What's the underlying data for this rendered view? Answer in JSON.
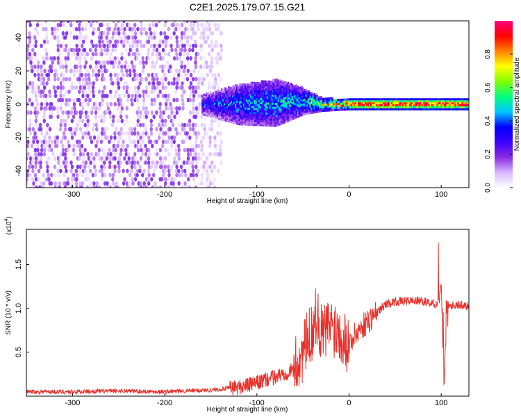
{
  "chart_data": [
    {
      "type": "heatmap",
      "title": "C2E1.2025.179.07.15.G21",
      "xlabel": "Height of straight line (km)",
      "ylabel": "Frequency (Hz)",
      "xlim": [
        -350,
        130
      ],
      "ylim": [
        -50,
        50
      ],
      "xticks": [
        -300,
        -200,
        -100,
        0,
        100
      ],
      "yticks": [
        -40,
        -20,
        0,
        20,
        40
      ],
      "colorbar": {
        "label": "Normalized spectral amplitude",
        "range": [
          0,
          1
        ],
        "ticks": [
          "0.0",
          "0.2",
          "0.4",
          "0.6",
          "0.8"
        ],
        "colors": [
          "#ffffff",
          "#d8b8ff",
          "#8a2be2",
          "#3b00ff",
          "#0000ff",
          "#00c8ff",
          "#00ff80",
          "#80ff00",
          "#ffff00",
          "#ff8000",
          "#ff0000",
          "#ff0080"
        ]
      },
      "regions": {
        "broad_noise": {
          "x": [
            -350,
            -140
          ],
          "freq_spread_hz": 50,
          "amplitude": 0.15
        },
        "signal_track": [
          {
            "x": -160,
            "freq_hz": 0,
            "width_hz": 6,
            "amplitude": 0.35
          },
          {
            "x": -120,
            "freq_hz": 0,
            "width_hz": 12,
            "amplitude": 0.45
          },
          {
            "x": -80,
            "freq_hz": 1,
            "width_hz": 14,
            "amplitude": 0.5
          },
          {
            "x": -50,
            "freq_hz": 2,
            "width_hz": 8,
            "amplitude": 0.5
          },
          {
            "x": -30,
            "freq_hz": 0,
            "width_hz": 4,
            "amplitude": 0.7
          },
          {
            "x": 0,
            "freq_hz": 0,
            "width_hz": 3,
            "amplitude": 0.95
          },
          {
            "x": 130,
            "freq_hz": 0,
            "width_hz": 3,
            "amplitude": 0.95
          }
        ]
      }
    },
    {
      "type": "line",
      "xlabel": "Height of straight line (km)",
      "ylabel": "SNR (10 * v/v)",
      "y_multiplier": "(x10",
      "y_multiplier_exp": "4",
      "y_multiplier_close": ")",
      "xlim": [
        -350,
        130
      ],
      "ylim": [
        0,
        19000
      ],
      "xticks": [
        -300,
        -200,
        -100,
        0,
        100
      ],
      "yticks": [
        "0.5",
        "1.0",
        "1.5"
      ],
      "ytick_values": [
        5000,
        10000,
        15000
      ],
      "color": "#e8302a",
      "x": [
        -350,
        -300,
        -250,
        -200,
        -150,
        -120,
        -100,
        -80,
        -60,
        -50,
        -40,
        -35,
        -30,
        -20,
        -10,
        -5,
        0,
        10,
        20,
        30,
        40,
        50,
        60,
        70,
        80,
        90,
        95,
        100,
        103,
        106,
        110,
        120,
        130
      ],
      "y": [
        500,
        500,
        600,
        500,
        700,
        1000,
        1500,
        2200,
        3000,
        5000,
        7500,
        9500,
        7000,
        8000,
        7500,
        6500,
        6000,
        7500,
        8500,
        9500,
        10500,
        10800,
        10800,
        10900,
        10800,
        10600,
        10500,
        12500,
        1000,
        10500,
        10400,
        10400,
        10300
      ]
    }
  ]
}
